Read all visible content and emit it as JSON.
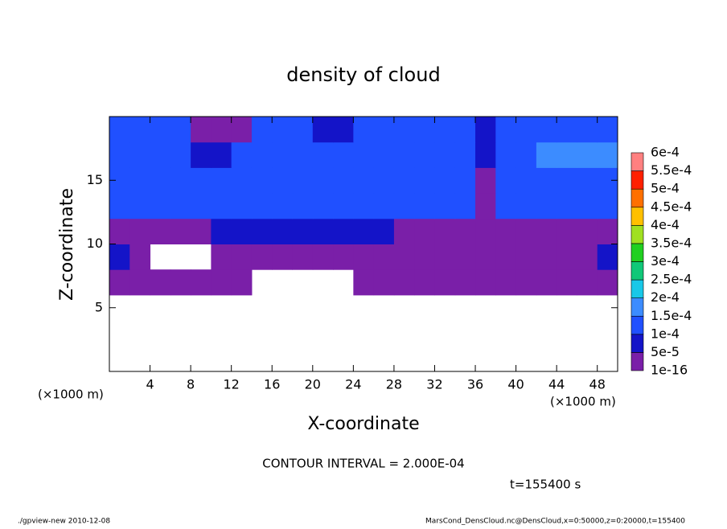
{
  "chart_data": {
    "type": "heatmap",
    "title": "density of cloud",
    "xlabel": "X-coordinate",
    "ylabel": "Z-coordinate",
    "x_unit": "(×1000 m)",
    "contour_note": "CONTOUR INTERVAL = 2.000E-04",
    "time_label": "t=155400 s",
    "footer_left": "./gpview-new  2010-12-08",
    "footer_right": "MarsCond_DensCloud.nc@DensCloud,x=0:50000,z=0:20000,t=155400",
    "xlim": [
      0,
      50
    ],
    "ylim": [
      0,
      20
    ],
    "xticks": [
      4,
      8,
      12,
      16,
      20,
      24,
      28,
      32,
      36,
      40,
      44,
      48
    ],
    "yticks": [
      5,
      10,
      15
    ],
    "x_edges": [
      0,
      2,
      4,
      6,
      8,
      10,
      12,
      14,
      16,
      18,
      20,
      22,
      24,
      26,
      28,
      30,
      32,
      34,
      36,
      38,
      40,
      42,
      44,
      46,
      48,
      50
    ],
    "y_edges": [
      0,
      2,
      4,
      6,
      8,
      10,
      12,
      14,
      16,
      18,
      20
    ],
    "values": [
      [
        null,
        null,
        null,
        null,
        null,
        null,
        null,
        null,
        null,
        null,
        null,
        null,
        null,
        null,
        null,
        null,
        null,
        null,
        null,
        null,
        null,
        null,
        null,
        null,
        null
      ],
      [
        null,
        null,
        null,
        null,
        null,
        null,
        null,
        null,
        null,
        null,
        null,
        null,
        null,
        null,
        null,
        null,
        null,
        null,
        null,
        null,
        null,
        null,
        null,
        null,
        null
      ],
      [
        null,
        null,
        null,
        null,
        null,
        null,
        null,
        null,
        null,
        null,
        null,
        null,
        null,
        null,
        null,
        null,
        null,
        null,
        null,
        null,
        null,
        null,
        null,
        null,
        null
      ],
      [
        2e-05,
        2e-05,
        2e-05,
        2e-05,
        2e-05,
        2e-05,
        2e-05,
        null,
        null,
        null,
        null,
        null,
        2e-05,
        2e-05,
        2e-05,
        2e-05,
        2e-05,
        2e-05,
        2e-05,
        2e-05,
        2e-05,
        2e-05,
        2e-05,
        2e-05,
        2e-05
      ],
      [
        7e-05,
        2e-05,
        null,
        null,
        null,
        2e-05,
        2e-05,
        2e-05,
        2e-05,
        2e-05,
        2e-05,
        2e-05,
        2e-05,
        2e-05,
        2e-05,
        2e-05,
        2e-05,
        2e-05,
        2e-05,
        2e-05,
        2e-05,
        2e-05,
        2e-05,
        2e-05,
        7e-05
      ],
      [
        2e-05,
        2e-05,
        2e-05,
        2e-05,
        2e-05,
        7e-05,
        7e-05,
        7e-05,
        7e-05,
        7e-05,
        7e-05,
        7e-05,
        7e-05,
        7e-05,
        2e-05,
        2e-05,
        2e-05,
        2e-05,
        2e-05,
        2e-05,
        2e-05,
        2e-05,
        2e-05,
        2e-05,
        2e-05
      ],
      [
        0.00012,
        0.00012,
        0.00012,
        0.00012,
        0.00012,
        0.00012,
        0.00012,
        0.00012,
        0.00012,
        0.00012,
        0.00012,
        0.00012,
        0.00012,
        0.00012,
        0.00012,
        0.00012,
        0.00012,
        0.00012,
        2e-05,
        0.00012,
        0.00012,
        0.00012,
        0.00012,
        0.00012,
        0.00012
      ],
      [
        0.00012,
        0.00012,
        0.00012,
        0.00012,
        0.00012,
        0.00012,
        0.00012,
        0.00012,
        0.00012,
        0.00012,
        0.00012,
        0.00012,
        0.00012,
        0.00012,
        0.00012,
        0.00012,
        0.00012,
        0.00012,
        2e-05,
        0.00012,
        0.00012,
        0.00012,
        0.00012,
        0.00012,
        0.00012
      ],
      [
        0.00012,
        0.00012,
        0.00012,
        0.00012,
        7e-05,
        7e-05,
        0.00012,
        0.00012,
        0.00012,
        0.00012,
        0.00012,
        0.00012,
        0.00012,
        0.00012,
        0.00012,
        0.00012,
        0.00012,
        0.00012,
        7e-05,
        0.00012,
        0.00012,
        0.00017,
        0.00017,
        0.00017,
        0.00017
      ],
      [
        0.00012,
        0.00012,
        0.00012,
        0.00012,
        2e-05,
        2e-05,
        2e-05,
        0.00012,
        0.00012,
        0.00012,
        7e-05,
        7e-05,
        0.00012,
        0.00012,
        0.00012,
        0.00012,
        0.00012,
        0.00012,
        7e-05,
        0.00012,
        0.00012,
        0.00012,
        0.00012,
        0.00012,
        0.00012
      ]
    ],
    "levels": [
      {
        "value": 1e-16,
        "label": "1e-16"
      },
      {
        "value": 5e-05,
        "label": "5e-5"
      },
      {
        "value": 0.0001,
        "label": "1e-4"
      },
      {
        "value": 0.00015,
        "label": "1.5e-4"
      },
      {
        "value": 0.0002,
        "label": "2e-4"
      },
      {
        "value": 0.00025,
        "label": "2.5e-4"
      },
      {
        "value": 0.0003,
        "label": "3e-4"
      },
      {
        "value": 0.00035,
        "label": "3.5e-4"
      },
      {
        "value": 0.0004,
        "label": "4e-4"
      },
      {
        "value": 0.00045,
        "label": "4.5e-4"
      },
      {
        "value": 0.0005,
        "label": "5e-4"
      },
      {
        "value": 0.00055,
        "label": "5.5e-4"
      },
      {
        "value": 0.0006,
        "label": "6e-4"
      }
    ],
    "colors": [
      "#7a1fa8",
      "#1414c8",
      "#2050ff",
      "#3c8cff",
      "#18c8e8",
      "#10c878",
      "#20d020",
      "#a0e020",
      "#ffc000",
      "#ff7000",
      "#ff2000",
      "#ff8080"
    ]
  }
}
